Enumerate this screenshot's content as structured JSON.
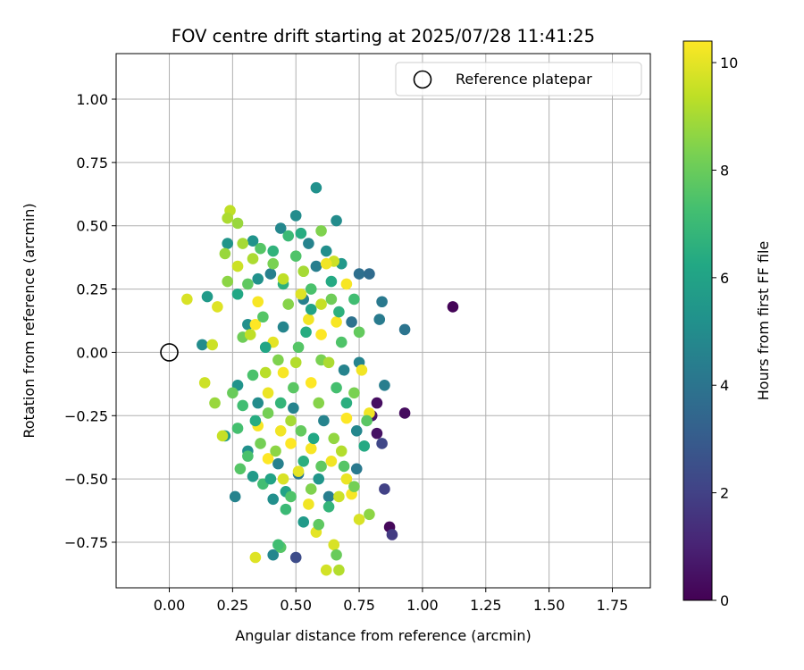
{
  "chart_data": {
    "type": "scatter",
    "title": "FOV centre drift starting at 2025/07/28 11:41:25",
    "xlabel": "Angular distance from reference (arcmin)",
    "ylabel": "Rotation from reference (arcmin)",
    "xlim": [
      -0.21,
      1.9
    ],
    "ylim": [
      -0.93,
      1.18
    ],
    "x_ticks": [
      0.0,
      0.25,
      0.5,
      0.75,
      1.0,
      1.25,
      1.5,
      1.75
    ],
    "x_tick_labels": [
      "0.00",
      "0.25",
      "0.50",
      "0.75",
      "1.00",
      "1.25",
      "1.50",
      "1.75"
    ],
    "y_ticks": [
      -0.75,
      -0.5,
      -0.25,
      0.0,
      0.25,
      0.5,
      0.75,
      1.0
    ],
    "y_tick_labels": [
      "−0.75",
      "−0.50",
      "−0.25",
      "0.00",
      "0.25",
      "0.50",
      "0.75",
      "1.00"
    ],
    "grid": true,
    "legend": {
      "position": "top-right",
      "entries": [
        "Reference platepar"
      ]
    },
    "reference_point": {
      "x": 0.0,
      "y": 0.0,
      "label": "Reference platepar"
    },
    "colorbar": {
      "label": "Hours from first FF file",
      "colormap": "viridis",
      "range": [
        0,
        10.4
      ],
      "ticks": [
        0,
        2,
        4,
        6,
        8,
        10
      ],
      "tick_labels": [
        "0",
        "2",
        "4",
        "6",
        "8",
        "10"
      ]
    },
    "point_color_by": "hours",
    "points": [
      {
        "x": 1.12,
        "y": 0.18,
        "hours": 0.1
      },
      {
        "x": 0.87,
        "y": -0.69,
        "hours": 0.2
      },
      {
        "x": 0.93,
        "y": -0.24,
        "hours": 0.3
      },
      {
        "x": 0.82,
        "y": -0.2,
        "hours": 0.4
      },
      {
        "x": 0.82,
        "y": -0.32,
        "hours": 0.5
      },
      {
        "x": 0.8,
        "y": -0.25,
        "hours": 0.6
      },
      {
        "x": 0.88,
        "y": -0.72,
        "hours": 1.8
      },
      {
        "x": 0.85,
        "y": -0.54,
        "hours": 2.0
      },
      {
        "x": 0.84,
        "y": -0.36,
        "hours": 2.2
      },
      {
        "x": 0.5,
        "y": -0.81,
        "hours": 2.4
      },
      {
        "x": 0.79,
        "y": 0.31,
        "hours": 3.6
      },
      {
        "x": 0.75,
        "y": 0.31,
        "hours": 3.8
      },
      {
        "x": 0.93,
        "y": 0.09,
        "hours": 4.0
      },
      {
        "x": 0.84,
        "y": 0.2,
        "hours": 4.2
      },
      {
        "x": 0.83,
        "y": 0.13,
        "hours": 4.3
      },
      {
        "x": 0.85,
        "y": -0.13,
        "hours": 4.4
      },
      {
        "x": 0.26,
        "y": -0.57,
        "hours": 4.6
      },
      {
        "x": 0.41,
        "y": -0.8,
        "hours": 4.8
      },
      {
        "x": 0.58,
        "y": 0.65,
        "hours": 5.2
      },
      {
        "x": 0.66,
        "y": 0.52,
        "hours": 5.0
      },
      {
        "x": 0.5,
        "y": 0.54,
        "hours": 5.0
      },
      {
        "x": 0.13,
        "y": 0.03,
        "hours": 5.0
      },
      {
        "x": 0.15,
        "y": 0.22,
        "hours": 5.6
      },
      {
        "x": 0.23,
        "y": 0.43,
        "hours": 5.4
      },
      {
        "x": 0.33,
        "y": 0.44,
        "hours": 5.3
      },
      {
        "x": 0.44,
        "y": 0.49,
        "hours": 4.8
      },
      {
        "x": 0.55,
        "y": 0.43,
        "hours": 4.6
      },
      {
        "x": 0.62,
        "y": 0.4,
        "hours": 5.1
      },
      {
        "x": 0.68,
        "y": 0.35,
        "hours": 5.5
      },
      {
        "x": 0.4,
        "y": 0.31,
        "hours": 4.5
      },
      {
        "x": 0.35,
        "y": 0.29,
        "hours": 5.2
      },
      {
        "x": 0.58,
        "y": 0.34,
        "hours": 4.4
      },
      {
        "x": 0.53,
        "y": 0.21,
        "hours": 4.5
      },
      {
        "x": 0.31,
        "y": 0.11,
        "hours": 5.1
      },
      {
        "x": 0.45,
        "y": 0.1,
        "hours": 4.7
      },
      {
        "x": 0.69,
        "y": -0.07,
        "hours": 4.6
      },
      {
        "x": 0.72,
        "y": 0.12,
        "hours": 3.9
      },
      {
        "x": 0.75,
        "y": -0.04,
        "hours": 4.6
      },
      {
        "x": 0.27,
        "y": -0.13,
        "hours": 5.3
      },
      {
        "x": 0.35,
        "y": -0.2,
        "hours": 5.0
      },
      {
        "x": 0.49,
        "y": -0.22,
        "hours": 4.6
      },
      {
        "x": 0.61,
        "y": -0.27,
        "hours": 4.6
      },
      {
        "x": 0.74,
        "y": -0.31,
        "hours": 4.8
      },
      {
        "x": 0.22,
        "y": -0.33,
        "hours": 5.6
      },
      {
        "x": 0.31,
        "y": -0.39,
        "hours": 5.2
      },
      {
        "x": 0.43,
        "y": -0.44,
        "hours": 4.5
      },
      {
        "x": 0.51,
        "y": -0.48,
        "hours": 4.1
      },
      {
        "x": 0.59,
        "y": -0.5,
        "hours": 5.4
      },
      {
        "x": 0.74,
        "y": -0.46,
        "hours": 4.2
      },
      {
        "x": 0.33,
        "y": -0.49,
        "hours": 5.6
      },
      {
        "x": 0.46,
        "y": -0.55,
        "hours": 6.0
      },
      {
        "x": 0.63,
        "y": -0.57,
        "hours": 4.4
      },
      {
        "x": 0.41,
        "y": -0.58,
        "hours": 5.1
      },
      {
        "x": 0.53,
        "y": -0.67,
        "hours": 5.6
      },
      {
        "x": 0.24,
        "y": 0.56,
        "hours": 9.4
      },
      {
        "x": 0.23,
        "y": 0.53,
        "hours": 9.1
      },
      {
        "x": 0.27,
        "y": 0.51,
        "hours": 8.8
      },
      {
        "x": 0.29,
        "y": 0.43,
        "hours": 9.0
      },
      {
        "x": 0.22,
        "y": 0.39,
        "hours": 8.8
      },
      {
        "x": 0.27,
        "y": 0.34,
        "hours": 9.6
      },
      {
        "x": 0.23,
        "y": 0.28,
        "hours": 8.6
      },
      {
        "x": 0.07,
        "y": 0.21,
        "hours": 9.8
      },
      {
        "x": 0.19,
        "y": 0.18,
        "hours": 9.9
      },
      {
        "x": 0.14,
        "y": -0.12,
        "hours": 9.6
      },
      {
        "x": 0.18,
        "y": -0.2,
        "hours": 8.8
      },
      {
        "x": 0.17,
        "y": 0.03,
        "hours": 9.6
      },
      {
        "x": 0.21,
        "y": -0.33,
        "hours": 9.5
      },
      {
        "x": 0.34,
        "y": -0.81,
        "hours": 9.9
      },
      {
        "x": 0.44,
        "y": -0.77,
        "hours": 7.6
      },
      {
        "x": 0.62,
        "y": -0.86,
        "hours": 9.7
      },
      {
        "x": 0.67,
        "y": -0.86,
        "hours": 9.2
      },
      {
        "x": 0.65,
        "y": -0.76,
        "hours": 9.8
      },
      {
        "x": 0.66,
        "y": -0.8,
        "hours": 8.0
      },
      {
        "x": 0.58,
        "y": -0.71,
        "hours": 10.0
      },
      {
        "x": 0.75,
        "y": -0.66,
        "hours": 9.8
      },
      {
        "x": 0.79,
        "y": -0.64,
        "hours": 8.6
      },
      {
        "x": 0.72,
        "y": -0.56,
        "hours": 10.3
      },
      {
        "x": 0.67,
        "y": -0.57,
        "hours": 9.6
      },
      {
        "x": 0.7,
        "y": -0.5,
        "hours": 10.1
      },
      {
        "x": 0.79,
        "y": -0.24,
        "hours": 10.2
      },
      {
        "x": 0.7,
        "y": -0.26,
        "hours": 10.4
      },
      {
        "x": 0.76,
        "y": -0.07,
        "hours": 10.2
      },
      {
        "x": 0.7,
        "y": 0.27,
        "hours": 10.3
      },
      {
        "x": 0.65,
        "y": 0.36,
        "hours": 9.6
      },
      {
        "x": 0.62,
        "y": 0.35,
        "hours": 10.2
      },
      {
        "x": 0.66,
        "y": 0.12,
        "hours": 10.3
      },
      {
        "x": 0.35,
        "y": 0.2,
        "hours": 10.3
      },
      {
        "x": 0.34,
        "y": 0.11,
        "hours": 10.4
      },
      {
        "x": 0.41,
        "y": 0.04,
        "hours": 10.0
      },
      {
        "x": 0.55,
        "y": 0.13,
        "hours": 10.2
      },
      {
        "x": 0.6,
        "y": 0.07,
        "hours": 10.4
      },
      {
        "x": 0.52,
        "y": 0.23,
        "hours": 9.9
      },
      {
        "x": 0.45,
        "y": -0.08,
        "hours": 10.3
      },
      {
        "x": 0.39,
        "y": -0.16,
        "hours": 10.1
      },
      {
        "x": 0.56,
        "y": -0.12,
        "hours": 10.4
      },
      {
        "x": 0.35,
        "y": -0.29,
        "hours": 10.3
      },
      {
        "x": 0.44,
        "y": -0.31,
        "hours": 10.2
      },
      {
        "x": 0.48,
        "y": -0.36,
        "hours": 10.4
      },
      {
        "x": 0.56,
        "y": -0.38,
        "hours": 10.3
      },
      {
        "x": 0.64,
        "y": -0.43,
        "hours": 10.2
      },
      {
        "x": 0.39,
        "y": -0.42,
        "hours": 10.4
      },
      {
        "x": 0.51,
        "y": -0.47,
        "hours": 10.0
      },
      {
        "x": 0.45,
        "y": -0.5,
        "hours": 9.8
      },
      {
        "x": 0.55,
        "y": -0.6,
        "hours": 10.2
      },
      {
        "x": 0.36,
        "y": -0.36,
        "hours": 8.2
      },
      {
        "x": 0.31,
        "y": -0.41,
        "hours": 7.4
      },
      {
        "x": 0.28,
        "y": -0.46,
        "hours": 7.6
      },
      {
        "x": 0.37,
        "y": -0.52,
        "hours": 7.2
      },
      {
        "x": 0.48,
        "y": -0.57,
        "hours": 7.5
      },
      {
        "x": 0.56,
        "y": -0.54,
        "hours": 8.4
      },
      {
        "x": 0.6,
        "y": -0.45,
        "hours": 7.8
      },
      {
        "x": 0.69,
        "y": -0.45,
        "hours": 7.6
      },
      {
        "x": 0.73,
        "y": -0.53,
        "hours": 8.2
      },
      {
        "x": 0.46,
        "y": -0.62,
        "hours": 7.0
      },
      {
        "x": 0.63,
        "y": -0.61,
        "hours": 6.8
      },
      {
        "x": 0.43,
        "y": -0.76,
        "hours": 7.2
      },
      {
        "x": 0.59,
        "y": -0.68,
        "hours": 7.8
      },
      {
        "x": 0.27,
        "y": -0.3,
        "hours": 7.3
      },
      {
        "x": 0.39,
        "y": -0.24,
        "hours": 8.2
      },
      {
        "x": 0.49,
        "y": -0.14,
        "hours": 7.7
      },
      {
        "x": 0.59,
        "y": -0.2,
        "hours": 8.5
      },
      {
        "x": 0.66,
        "y": -0.14,
        "hours": 7.3
      },
      {
        "x": 0.73,
        "y": -0.16,
        "hours": 8.3
      },
      {
        "x": 0.78,
        "y": -0.27,
        "hours": 7.7
      },
      {
        "x": 0.25,
        "y": -0.16,
        "hours": 8.0
      },
      {
        "x": 0.33,
        "y": -0.09,
        "hours": 7.4
      },
      {
        "x": 0.43,
        "y": -0.03,
        "hours": 8.4
      },
      {
        "x": 0.51,
        "y": 0.02,
        "hours": 7.6
      },
      {
        "x": 0.6,
        "y": -0.03,
        "hours": 8.3
      },
      {
        "x": 0.68,
        "y": 0.04,
        "hours": 7.5
      },
      {
        "x": 0.75,
        "y": 0.08,
        "hours": 7.9
      },
      {
        "x": 0.29,
        "y": 0.06,
        "hours": 8.1
      },
      {
        "x": 0.37,
        "y": 0.14,
        "hours": 7.6
      },
      {
        "x": 0.47,
        "y": 0.19,
        "hours": 8.5
      },
      {
        "x": 0.56,
        "y": 0.25,
        "hours": 7.4
      },
      {
        "x": 0.64,
        "y": 0.21,
        "hours": 8.1
      },
      {
        "x": 0.73,
        "y": 0.21,
        "hours": 7.2
      },
      {
        "x": 0.31,
        "y": 0.27,
        "hours": 7.8
      },
      {
        "x": 0.41,
        "y": 0.35,
        "hours": 8.3
      },
      {
        "x": 0.5,
        "y": 0.38,
        "hours": 7.5
      },
      {
        "x": 0.6,
        "y": 0.48,
        "hours": 8.4
      },
      {
        "x": 0.47,
        "y": 0.46,
        "hours": 7.0
      },
      {
        "x": 0.36,
        "y": 0.41,
        "hours": 7.6
      },
      {
        "x": 0.42,
        "y": -0.39,
        "hours": 8.6
      },
      {
        "x": 0.52,
        "y": -0.31,
        "hours": 7.9
      },
      {
        "x": 0.65,
        "y": -0.34,
        "hours": 8.7
      },
      {
        "x": 0.29,
        "y": -0.21,
        "hours": 7.2
      },
      {
        "x": 0.54,
        "y": 0.08,
        "hours": 6.4
      },
      {
        "x": 0.38,
        "y": 0.02,
        "hours": 6.1
      },
      {
        "x": 0.45,
        "y": 0.27,
        "hours": 6.6
      },
      {
        "x": 0.64,
        "y": 0.28,
        "hours": 6.3
      },
      {
        "x": 0.56,
        "y": 0.17,
        "hours": 6.0
      },
      {
        "x": 0.7,
        "y": -0.2,
        "hours": 6.5
      },
      {
        "x": 0.57,
        "y": -0.34,
        "hours": 6.2
      },
      {
        "x": 0.44,
        "y": -0.2,
        "hours": 6.8
      },
      {
        "x": 0.34,
        "y": -0.27,
        "hours": 6.4
      },
      {
        "x": 0.4,
        "y": -0.5,
        "hours": 6.0
      },
      {
        "x": 0.53,
        "y": -0.43,
        "hours": 6.5
      },
      {
        "x": 0.77,
        "y": -0.37,
        "hours": 6.3
      },
      {
        "x": 0.27,
        "y": 0.23,
        "hours": 6.2
      },
      {
        "x": 0.41,
        "y": 0.4,
        "hours": 6.7
      },
      {
        "x": 0.52,
        "y": 0.47,
        "hours": 6.4
      },
      {
        "x": 0.67,
        "y": 0.16,
        "hours": 6.6
      },
      {
        "x": 0.33,
        "y": 0.37,
        "hours": 9.1
      },
      {
        "x": 0.45,
        "y": 0.29,
        "hours": 9.4
      },
      {
        "x": 0.53,
        "y": 0.32,
        "hours": 9.0
      },
      {
        "x": 0.6,
        "y": 0.19,
        "hours": 9.5
      },
      {
        "x": 0.38,
        "y": -0.08,
        "hours": 9.3
      },
      {
        "x": 0.63,
        "y": -0.04,
        "hours": 9.1
      },
      {
        "x": 0.68,
        "y": -0.39,
        "hours": 9.2
      },
      {
        "x": 0.48,
        "y": -0.27,
        "hours": 9.0
      },
      {
        "x": 0.32,
        "y": 0.07,
        "hours": 9.4
      },
      {
        "x": 0.5,
        "y": -0.04,
        "hours": 9.2
      }
    ]
  }
}
